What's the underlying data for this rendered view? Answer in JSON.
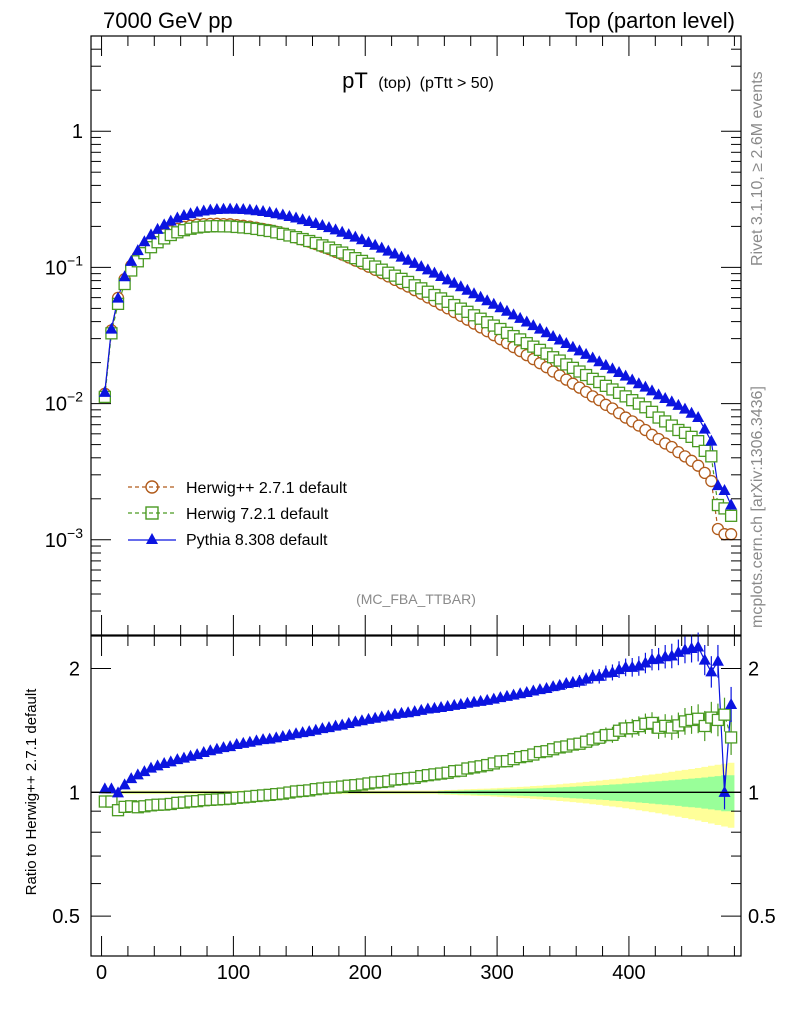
{
  "header": {
    "left": "7000 GeV pp",
    "right": "Top (parton level)"
  },
  "plot": {
    "title_main": "pT",
    "title_sub1": "(top)",
    "title_sub2": "(pTtt > 50)",
    "analysis_tag": "(MC_FBA_TTBAR)",
    "side_text_top": "Rivet 3.1.10, ≥ 2.6M events",
    "side_text_bottom": "mcplots.cern.ch [arXiv:1306.3436]"
  },
  "colors": {
    "herwig_pp": "#b05a1a",
    "herwig7": "#4a9a22",
    "pythia": "#0b14e0",
    "band_outer": "#ffff99",
    "band_inner": "#99ff99"
  },
  "chart_data": [
    {
      "type": "line",
      "title": "pT (top) (pTtt > 50)",
      "xlabel": "",
      "ylabel": "",
      "yscale": "log",
      "ylim": [
        0.0002,
        5
      ],
      "xlim": [
        -8,
        485
      ],
      "yticks": [
        {
          "value": 1,
          "label": "1",
          "base": "1",
          "exp": ""
        },
        {
          "value": 0.1,
          "label": "10^-1",
          "base": "10",
          "exp": "−1"
        },
        {
          "value": 0.01,
          "label": "10^-2",
          "base": "10",
          "exp": "−2"
        },
        {
          "value": 0.001,
          "label": "10^-3",
          "base": "10",
          "exp": "−3"
        }
      ],
      "legend": [
        {
          "name": "Herwig++ 2.7.1 default",
          "marker": "circle-open",
          "style": "dashed"
        },
        {
          "name": "Herwig 7.2.1 default",
          "marker": "square-open",
          "style": "dashed"
        },
        {
          "name": "Pythia 8.308 default",
          "marker": "triangle-filled",
          "style": "solid"
        }
      ],
      "x": [
        2.5,
        7.5,
        12.5,
        17.5,
        22.5,
        27.5,
        32.5,
        37.5,
        42.5,
        47.5,
        52.5,
        57.5,
        62.5,
        67.5,
        72.5,
        77.5,
        82.5,
        87.5,
        92.5,
        97.5,
        102.5,
        107.5,
        112.5,
        117.5,
        122.5,
        127.5,
        132.5,
        137.5,
        142.5,
        147.5,
        152.5,
        157.5,
        162.5,
        167.5,
        172.5,
        177.5,
        182.5,
        187.5,
        192.5,
        197.5,
        202.5,
        207.5,
        212.5,
        217.5,
        222.5,
        227.5,
        232.5,
        237.5,
        242.5,
        247.5,
        252.5,
        257.5,
        262.5,
        267.5,
        272.5,
        277.5,
        282.5,
        287.5,
        292.5,
        297.5,
        302.5,
        307.5,
        312.5,
        317.5,
        322.5,
        327.5,
        332.5,
        337.5,
        342.5,
        347.5,
        352.5,
        357.5,
        362.5,
        367.5,
        372.5,
        377.5,
        382.5,
        387.5,
        392.5,
        397.5,
        402.5,
        407.5,
        412.5,
        417.5,
        422.5,
        427.5,
        432.5,
        437.5,
        442.5,
        447.5,
        452.5,
        457.5,
        462.5,
        467.5,
        472.5,
        477.5
      ],
      "series": [
        {
          "name": "Herwig++ 2.7.1 default",
          "values": [
            0.0118,
            0.0345,
            0.0597,
            0.0819,
            0.1026,
            0.1205,
            0.1375,
            0.1512,
            0.164,
            0.1748,
            0.1845,
            0.1919,
            0.1984,
            0.2025,
            0.2063,
            0.2078,
            0.2087,
            0.209,
            0.2079,
            0.2072,
            0.2044,
            0.202,
            0.1993,
            0.1955,
            0.1914,
            0.1877,
            0.1827,
            0.1774,
            0.1718,
            0.166,
            0.1603,
            0.1545,
            0.1484,
            0.1421,
            0.1363,
            0.1301,
            0.1244,
            0.1183,
            0.1123,
            0.1068,
            0.1012,
            0.096,
            0.0908,
            0.0859,
            0.081,
            0.0765,
            0.0723,
            0.0681,
            0.0641,
            0.0602,
            0.0567,
            0.0533,
            0.0501,
            0.047,
            0.0441,
            0.0413,
            0.0387,
            0.0363,
            0.034,
            0.0318,
            0.0297,
            0.0278,
            0.026,
            0.0243,
            0.0227,
            0.0212,
            0.0198,
            0.0185,
            0.0172,
            0.0161,
            0.015,
            0.014,
            0.0131,
            0.0122,
            0.0113,
            0.0106,
            0.0098,
            0.0092,
            0.0085,
            0.0079,
            0.0074,
            0.0069,
            0.0064,
            0.0059,
            0.0055,
            0.0051,
            0.0048,
            0.0044,
            0.0041,
            0.0038,
            0.0035,
            0.0031,
            0.0027,
            0.0012,
            0.0011,
            0.0011
          ]
        },
        {
          "name": "Herwig 7.2.1 default",
          "values": [
            0.0112,
            0.0328,
            0.054,
            0.0755,
            0.0949,
            0.1109,
            0.1272,
            0.1407,
            0.153,
            0.1633,
            0.1729,
            0.181,
            0.1876,
            0.1923,
            0.1965,
            0.1989,
            0.2002,
            0.2008,
            0.2002,
            0.1999,
            0.1982,
            0.1966,
            0.1946,
            0.1917,
            0.1882,
            0.1851,
            0.1808,
            0.1762,
            0.1716,
            0.1668,
            0.1615,
            0.1562,
            0.1511,
            0.1452,
            0.1398,
            0.1337,
            0.1285,
            0.1228,
            0.1169,
            0.1116,
            0.1064,
            0.1015,
            0.0962,
            0.0914,
            0.087,
            0.0824,
            0.0782,
            0.0739,
            0.0702,
            0.0663,
            0.0627,
            0.0592,
            0.0559,
            0.0529,
            0.0498,
            0.0472,
            0.0445,
            0.042,
            0.0396,
            0.0374,
            0.0353,
            0.0331,
            0.0313,
            0.0296,
            0.0278,
            0.0262,
            0.0248,
            0.0233,
            0.0219,
            0.0207,
            0.0194,
            0.0183,
            0.0172,
            0.0162,
            0.0152,
            0.0144,
            0.0135,
            0.0127,
            0.012,
            0.0113,
            0.0106,
            0.01,
            0.0094,
            0.0087,
            0.0079,
            0.0074,
            0.0069,
            0.0064,
            0.0061,
            0.0057,
            0.0053,
            0.0045,
            0.0041,
            0.0018,
            0.0017,
            0.0015
          ]
        },
        {
          "name": "Pythia 8.308 default",
          "values": [
            0.0121,
            0.0352,
            0.0595,
            0.0854,
            0.1108,
            0.1329,
            0.1544,
            0.1732,
            0.1902,
            0.2054,
            0.2188,
            0.2305,
            0.2403,
            0.2479,
            0.2548,
            0.2597,
            0.2633,
            0.266,
            0.2672,
            0.2677,
            0.2672,
            0.2659,
            0.2638,
            0.2608,
            0.2571,
            0.2528,
            0.2479,
            0.2425,
            0.2366,
            0.2304,
            0.2239,
            0.2171,
            0.2101,
            0.203,
            0.1958,
            0.1885,
            0.1812,
            0.1739,
            0.1667,
            0.1595,
            0.1523,
            0.1453,
            0.1385,
            0.1318,
            0.1253,
            0.119,
            0.1129,
            0.107,
            0.1014,
            0.096,
            0.0907,
            0.0857,
            0.081,
            0.0765,
            0.0721,
            0.068,
            0.0641,
            0.0604,
            0.0569,
            0.0536,
            0.0505,
            0.0476,
            0.0448,
            0.0422,
            0.0397,
            0.0374,
            0.0352,
            0.0331,
            0.0311,
            0.0293,
            0.0276,
            0.0259,
            0.0244,
            0.023,
            0.0216,
            0.0203,
            0.0191,
            0.018,
            0.0169,
            0.0159,
            0.0149,
            0.014,
            0.0132,
            0.0124,
            0.0116,
            0.0109,
            0.0103,
            0.0097,
            0.0091,
            0.0085,
            0.0079,
            0.0065,
            0.0053,
            0.0025,
            0.0023,
            0.0018
          ]
        }
      ]
    },
    {
      "type": "line",
      "title": "",
      "xlabel": "",
      "ylabel": "Ratio to Herwig++ 2.7.1 default",
      "yscale": "log",
      "ylim": [
        0.4,
        2.4
      ],
      "xlim": [
        -8,
        485
      ],
      "yticks": [
        {
          "value": 0.5,
          "label": "0.5"
        },
        {
          "value": 1,
          "label": "1"
        },
        {
          "value": 2,
          "label": "2"
        }
      ],
      "xticks": [
        {
          "value": 0,
          "label": "0"
        },
        {
          "value": 100,
          "label": "100"
        },
        {
          "value": 200,
          "label": "200"
        },
        {
          "value": 300,
          "label": "300"
        },
        {
          "value": 400,
          "label": "400"
        }
      ],
      "x": [
        2.5,
        7.5,
        12.5,
        17.5,
        22.5,
        27.5,
        32.5,
        37.5,
        42.5,
        47.5,
        52.5,
        57.5,
        62.5,
        67.5,
        72.5,
        77.5,
        82.5,
        87.5,
        92.5,
        97.5,
        102.5,
        107.5,
        112.5,
        117.5,
        122.5,
        127.5,
        132.5,
        137.5,
        142.5,
        147.5,
        152.5,
        157.5,
        162.5,
        167.5,
        172.5,
        177.5,
        182.5,
        187.5,
        192.5,
        197.5,
        202.5,
        207.5,
        212.5,
        217.5,
        222.5,
        227.5,
        232.5,
        237.5,
        242.5,
        247.5,
        252.5,
        257.5,
        262.5,
        267.5,
        272.5,
        277.5,
        282.5,
        287.5,
        292.5,
        297.5,
        302.5,
        307.5,
        312.5,
        317.5,
        322.5,
        327.5,
        332.5,
        337.5,
        342.5,
        347.5,
        352.5,
        357.5,
        362.5,
        367.5,
        372.5,
        377.5,
        382.5,
        387.5,
        392.5,
        397.5,
        402.5,
        407.5,
        412.5,
        417.5,
        422.5,
        427.5,
        432.5,
        437.5,
        442.5,
        447.5,
        452.5,
        457.5,
        462.5,
        467.5,
        472.5,
        477.5
      ],
      "band_outer": [
        0.01,
        0.01,
        0.01,
        0.01,
        0.01,
        0.01,
        0.01,
        0.01,
        0.01,
        0.01,
        0.01,
        0.01,
        0.01,
        0.01,
        0.01,
        0.01,
        0.01,
        0.01,
        0.01,
        0.01,
        0.01,
        0.01,
        0.01,
        0.01,
        0.01,
        0.01,
        0.01,
        0.01,
        0.01,
        0.01,
        0.01,
        0.01,
        0.01,
        0.01,
        0.01,
        0.01,
        0.01,
        0.01,
        0.01,
        0.01,
        0.01,
        0.01,
        0.01,
        0.01,
        0.01,
        0.01,
        0.01,
        0.01,
        0.01,
        0.01,
        0.01,
        0.012,
        0.013,
        0.014,
        0.016,
        0.017,
        0.019,
        0.02,
        0.021,
        0.023,
        0.025,
        0.027,
        0.029,
        0.031,
        0.033,
        0.036,
        0.038,
        0.041,
        0.044,
        0.047,
        0.05,
        0.053,
        0.057,
        0.06,
        0.064,
        0.068,
        0.072,
        0.076,
        0.08,
        0.085,
        0.09,
        0.095,
        0.1,
        0.105,
        0.11,
        0.116,
        0.122,
        0.128,
        0.134,
        0.14,
        0.146,
        0.153,
        0.16,
        0.167,
        0.174,
        0.18
      ],
      "band_inner": [
        0.005,
        0.005,
        0.005,
        0.005,
        0.005,
        0.005,
        0.005,
        0.005,
        0.005,
        0.005,
        0.005,
        0.005,
        0.005,
        0.005,
        0.005,
        0.005,
        0.005,
        0.005,
        0.005,
        0.005,
        0.005,
        0.005,
        0.005,
        0.005,
        0.005,
        0.005,
        0.005,
        0.005,
        0.005,
        0.005,
        0.005,
        0.005,
        0.005,
        0.005,
        0.005,
        0.005,
        0.005,
        0.005,
        0.005,
        0.005,
        0.005,
        0.005,
        0.005,
        0.005,
        0.005,
        0.005,
        0.005,
        0.005,
        0.005,
        0.005,
        0.005,
        0.007,
        0.008,
        0.009,
        0.01,
        0.011,
        0.012,
        0.013,
        0.014,
        0.015,
        0.016,
        0.017,
        0.018,
        0.019,
        0.02,
        0.022,
        0.023,
        0.025,
        0.026,
        0.028,
        0.03,
        0.032,
        0.034,
        0.036,
        0.038,
        0.04,
        0.042,
        0.045,
        0.047,
        0.05,
        0.052,
        0.055,
        0.058,
        0.061,
        0.064,
        0.067,
        0.07,
        0.073,
        0.077,
        0.08,
        0.083,
        0.087,
        0.091,
        0.095,
        0.1,
        0.1
      ],
      "series": [
        {
          "name": "Herwig 7.2.1 default",
          "values": [
            0.95,
            0.95,
            0.905,
            0.922,
            0.925,
            0.92,
            0.925,
            0.93,
            0.933,
            0.934,
            0.937,
            0.943,
            0.945,
            0.95,
            0.952,
            0.957,
            0.959,
            0.961,
            0.963,
            0.965,
            0.97,
            0.973,
            0.976,
            0.98,
            0.983,
            0.986,
            0.99,
            0.993,
            0.999,
            1.005,
            1.008,
            1.011,
            1.018,
            1.022,
            1.026,
            1.028,
            1.033,
            1.038,
            1.041,
            1.045,
            1.051,
            1.057,
            1.06,
            1.064,
            1.074,
            1.077,
            1.082,
            1.085,
            1.095,
            1.101,
            1.106,
            1.111,
            1.116,
            1.126,
            1.129,
            1.143,
            1.15,
            1.157,
            1.165,
            1.176,
            1.189,
            1.191,
            1.204,
            1.218,
            1.225,
            1.236,
            1.253,
            1.259,
            1.273,
            1.286,
            1.293,
            1.307,
            1.313,
            1.328,
            1.345,
            1.358,
            1.378,
            1.38,
            1.412,
            1.43,
            1.432,
            1.449,
            1.468,
            1.475,
            1.436,
            1.451,
            1.437,
            1.455,
            1.488,
            1.5,
            1.51,
            1.45,
            1.52,
            1.5,
            1.545,
            1.36
          ]
        },
        {
          "name": "Pythia 8.308 default",
          "values": [
            1.02,
            1.02,
            0.997,
            1.043,
            1.08,
            1.103,
            1.123,
            1.145,
            1.16,
            1.175,
            1.186,
            1.201,
            1.211,
            1.224,
            1.235,
            1.25,
            1.262,
            1.273,
            1.285,
            1.292,
            1.307,
            1.316,
            1.324,
            1.334,
            1.343,
            1.347,
            1.357,
            1.367,
            1.377,
            1.388,
            1.397,
            1.405,
            1.416,
            1.429,
            1.437,
            1.449,
            1.457,
            1.47,
            1.484,
            1.493,
            1.505,
            1.514,
            1.525,
            1.534,
            1.547,
            1.556,
            1.562,
            1.571,
            1.582,
            1.595,
            1.6,
            1.608,
            1.617,
            1.628,
            1.635,
            1.647,
            1.656,
            1.664,
            1.674,
            1.686,
            1.7,
            1.712,
            1.723,
            1.737,
            1.749,
            1.764,
            1.778,
            1.789,
            1.808,
            1.82,
            1.84,
            1.85,
            1.863,
            1.885,
            1.912,
            1.915,
            1.949,
            1.957,
            1.988,
            2.013,
            2.014,
            2.029,
            2.063,
            2.102,
            2.109,
            2.137,
            2.146,
            2.19,
            2.22,
            2.237,
            2.257,
            2.097,
            1.963,
            2.083,
            1.0,
            1.636
          ]
        }
      ]
    }
  ]
}
